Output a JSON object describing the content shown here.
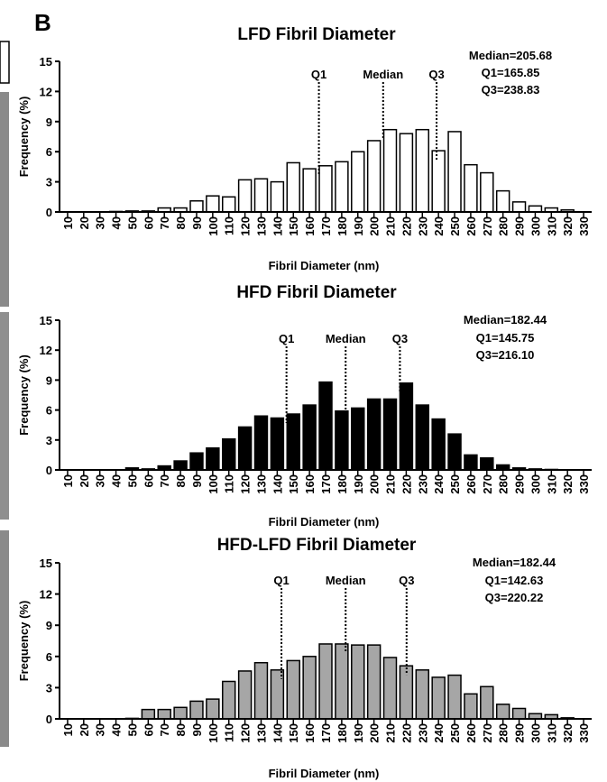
{
  "panel_letter": "B",
  "chart_data": [
    {
      "type": "bar",
      "title": "LFD Fibril Diameter",
      "xlabel": "Fibril Diameter (nm)",
      "ylabel": "Frequency (%)",
      "ylim": [
        0,
        15
      ],
      "yticks": [
        "0",
        "3",
        "6",
        "9",
        "12",
        "15"
      ],
      "bar_color": "#ffffff",
      "categories": [
        "10",
        "20",
        "30",
        "40",
        "50",
        "60",
        "70",
        "80",
        "90",
        "100",
        "110",
        "120",
        "130",
        "140",
        "150",
        "160",
        "170",
        "180",
        "190",
        "200",
        "210",
        "220",
        "230",
        "240",
        "250",
        "260",
        "270",
        "280",
        "290",
        "300",
        "310",
        "320",
        "330"
      ],
      "values": [
        0,
        0,
        0,
        0.05,
        0.1,
        0.1,
        0.4,
        0.4,
        1.1,
        1.6,
        1.5,
        3.2,
        3.3,
        3.0,
        4.9,
        4.3,
        4.6,
        5.0,
        6.0,
        7.1,
        8.2,
        7.8,
        8.2,
        6.1,
        8.0,
        4.7,
        3.9,
        2.1,
        1.0,
        0.6,
        0.4,
        0.2,
        0
      ],
      "stats": {
        "median": "Median=205.68",
        "q1": "Q1=165.85",
        "q3": "Q3=238.83"
      },
      "markers": [
        {
          "label": "Q1",
          "x": 165.85
        },
        {
          "label": "Median",
          "x": 205.68
        },
        {
          "label": "Q3",
          "x": 238.83
        }
      ]
    },
    {
      "type": "bar",
      "title": "HFD Fibril Diameter",
      "xlabel": "Fibril Diameter (nm)",
      "ylabel": "Frequency (%)",
      "ylim": [
        0,
        15
      ],
      "yticks": [
        "0",
        "3",
        "6",
        "9",
        "12",
        "15"
      ],
      "bar_color": "#000000",
      "categories": [
        "10",
        "20",
        "30",
        "40",
        "50",
        "60",
        "70",
        "80",
        "90",
        "100",
        "110",
        "120",
        "130",
        "140",
        "150",
        "160",
        "170",
        "180",
        "190",
        "200",
        "210",
        "220",
        "230",
        "240",
        "250",
        "260",
        "270",
        "280",
        "290",
        "300",
        "310",
        "320",
        "330"
      ],
      "values": [
        0,
        0,
        0,
        0,
        0.2,
        0.1,
        0.4,
        0.9,
        1.7,
        2.2,
        3.1,
        4.3,
        5.4,
        5.2,
        5.6,
        6.5,
        8.8,
        5.9,
        6.2,
        7.1,
        7.1,
        8.7,
        6.5,
        5.1,
        3.6,
        1.5,
        1.2,
        0.5,
        0.2,
        0.1,
        0.05,
        0,
        0
      ],
      "stats": {
        "median": "Median=182.44",
        "q1": "Q1=145.75",
        "q3": "Q3=216.10"
      },
      "markers": [
        {
          "label": "Q1",
          "x": 145.75
        },
        {
          "label": "Median",
          "x": 182.44
        },
        {
          "label": "Q3",
          "x": 216.1
        }
      ]
    },
    {
      "type": "bar",
      "title": "HFD-LFD Fibril Diameter",
      "xlabel": "Fibril Diameter (nm)",
      "ylabel": "Frequency (%)",
      "ylim": [
        0,
        15
      ],
      "yticks": [
        "0",
        "3",
        "6",
        "9",
        "12",
        "15"
      ],
      "bar_color": "#a6a6a6",
      "categories": [
        "10",
        "20",
        "30",
        "40",
        "50",
        "60",
        "70",
        "80",
        "90",
        "100",
        "110",
        "120",
        "130",
        "140",
        "150",
        "160",
        "170",
        "180",
        "190",
        "200",
        "210",
        "220",
        "230",
        "240",
        "250",
        "260",
        "270",
        "280",
        "290",
        "300",
        "310",
        "320",
        "330"
      ],
      "values": [
        0,
        0,
        0,
        0,
        0.05,
        0.9,
        0.9,
        1.1,
        1.7,
        1.9,
        3.6,
        4.6,
        5.4,
        4.7,
        5.6,
        6.0,
        7.2,
        7.2,
        7.1,
        7.1,
        5.9,
        5.1,
        4.7,
        4.0,
        4.2,
        2.4,
        3.1,
        1.4,
        1.0,
        0.5,
        0.4,
        0.1,
        0
      ],
      "stats": {
        "median": "Median=182.44",
        "q1": "Q1=142.63",
        "q3": "Q3=220.22"
      },
      "markers": [
        {
          "label": "Q1",
          "x": 142.63
        },
        {
          "label": "Median",
          "x": 182.44
        },
        {
          "label": "Q3",
          "x": 220.22
        }
      ]
    }
  ]
}
